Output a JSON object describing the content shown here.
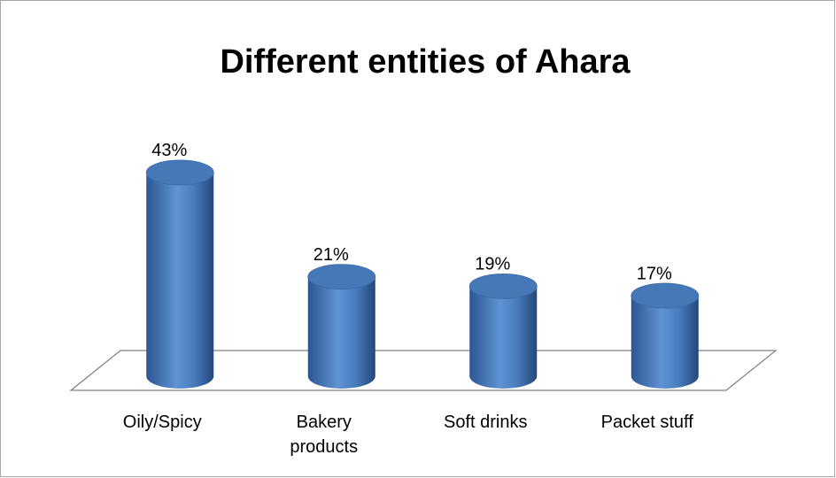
{
  "chart_data": {
    "type": "bar3d",
    "title": "Different entities of Ahara",
    "categories": [
      "Oily/Spicy",
      "Bakery products",
      "Soft drinks",
      "Packet stuff"
    ],
    "values": [
      43,
      21,
      19,
      17
    ],
    "value_labels": [
      "43%",
      "21%",
      "19%",
      "17%"
    ],
    "color": "#4f81bd"
  }
}
